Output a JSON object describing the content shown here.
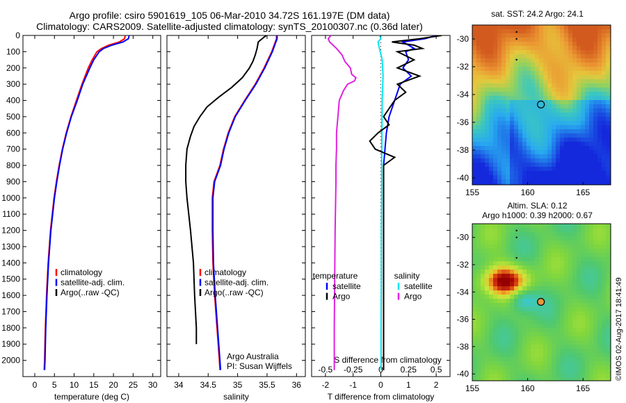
{
  "title": {
    "line1": "Argo profile: csiro 5901619_105 06-Mar-2010 34.72S 161.197E (DM data)",
    "line2": "Climatology: CARS2009. Satellite-adjusted climatology: synTS_20100307.nc (0.36d later)"
  },
  "side_caption": "©IMOS 02-Aug-2017 18:41:49",
  "colors": {
    "climatology": "#ff0000",
    "satellite": "#0000ff",
    "argo": "#000000",
    "salinity_satellite": "#00e5ee",
    "salinity_argo": "#e020e0"
  },
  "chart_data": [
    {
      "id": "temperature",
      "type": "line",
      "xlabel": "temperature (deg C)",
      "ylabel": "",
      "xlim": [
        -3,
        32
      ],
      "ylim": [
        2100,
        0
      ],
      "xticks": [
        "0",
        "5",
        "10",
        "15",
        "20",
        "25",
        "30"
      ],
      "xtick_values": [
        0,
        5,
        10,
        15,
        20,
        25,
        30
      ],
      "yticks": [
        "0",
        "100",
        "200",
        "300",
        "400",
        "500",
        "600",
        "700",
        "800",
        "900",
        "1000",
        "1100",
        "1200",
        "1300",
        "1400",
        "1500",
        "1600",
        "1700",
        "1800",
        "1900",
        "2000"
      ],
      "ytick_values": [
        0,
        100,
        200,
        300,
        400,
        500,
        600,
        700,
        800,
        900,
        1000,
        1100,
        1200,
        1300,
        1400,
        1500,
        1600,
        1700,
        1800,
        1900,
        2000
      ],
      "legend": {
        "entries": [
          {
            "label": "climatology",
            "color": "#ff0000"
          },
          {
            "label": "satellite-adj. clim.",
            "color": "#0000ff"
          },
          {
            "label": "Argo(..raw -QC)",
            "color": "#000000"
          }
        ]
      },
      "series": [
        {
          "color": "#ff0000",
          "depth": [
            0,
            20,
            40,
            60,
            80,
            100,
            150,
            200,
            300,
            400,
            500,
            600,
            700,
            800,
            900,
            1000,
            1200,
            1400,
            1600,
            1800,
            2000,
            2060
          ],
          "values": [
            23.0,
            22.8,
            21.5,
            18.8,
            17.0,
            15.8,
            14.6,
            13.6,
            12.0,
            10.6,
            9.2,
            8.0,
            7.0,
            6.2,
            5.5,
            4.9,
            4.0,
            3.4,
            3.0,
            2.7,
            2.5,
            2.4
          ]
        },
        {
          "color": "#0000ff",
          "depth": [
            0,
            20,
            40,
            60,
            80,
            100,
            150,
            200,
            300,
            400,
            500,
            600,
            700,
            800,
            900,
            1000,
            1200,
            1400,
            1600,
            1800,
            2000,
            2060
          ],
          "values": [
            24.0,
            23.8,
            22.4,
            19.6,
            17.5,
            16.4,
            15.0,
            14.0,
            12.2,
            10.8,
            9.3,
            8.1,
            7.1,
            6.3,
            5.6,
            5.0,
            4.1,
            3.5,
            3.1,
            2.8,
            2.6,
            2.5
          ]
        }
      ]
    },
    {
      "id": "salinity",
      "type": "line",
      "xlabel": "salinity",
      "ylabel": "",
      "xlim": [
        33.8,
        36.15
      ],
      "ylim": [
        2100,
        0
      ],
      "xticks": [
        "34",
        "34.5",
        "35",
        "35.5",
        "36"
      ],
      "xtick_values": [
        34,
        34.5,
        35,
        35.5,
        36
      ],
      "legend": {
        "entries": [
          {
            "label": "climatology",
            "color": "#ff0000"
          },
          {
            "label": "satellite-adj. clim.",
            "color": "#0000ff"
          },
          {
            "label": "Argo(..raw -QC)",
            "color": "#000000"
          }
        ]
      },
      "annotation": [
        "Argo Australia",
        "PI: Susan Wijffels"
      ],
      "series": [
        {
          "color": "#ff0000",
          "depth": [
            0,
            20,
            50,
            100,
            200,
            300,
            400,
            500,
            600,
            700,
            800,
            900,
            1000,
            1200,
            1400,
            1600,
            1800,
            2000,
            2060
          ],
          "values": [
            35.66,
            35.66,
            35.63,
            35.58,
            35.45,
            35.3,
            35.12,
            34.95,
            34.84,
            34.76,
            34.7,
            34.6,
            34.57,
            34.57,
            34.58,
            34.61,
            34.65,
            34.69,
            34.7
          ]
        },
        {
          "color": "#0000ff",
          "depth": [
            0,
            20,
            50,
            100,
            200,
            300,
            400,
            500,
            600,
            700,
            800,
            900,
            1000,
            1200,
            1400,
            1600,
            1800,
            2000,
            2060
          ],
          "values": [
            35.67,
            35.67,
            35.64,
            35.59,
            35.46,
            35.31,
            35.13,
            34.96,
            34.85,
            34.77,
            34.71,
            34.61,
            34.58,
            34.58,
            34.59,
            34.62,
            34.66,
            34.7,
            34.71
          ]
        },
        {
          "color": "#000000",
          "depth": [
            0,
            10,
            40,
            80,
            120,
            160,
            200,
            260,
            320,
            380,
            440,
            500,
            560,
            620,
            700,
            800,
            900,
            1000,
            1200,
            1400,
            1600,
            1800,
            1900
          ],
          "values": [
            35.49,
            35.45,
            35.35,
            35.33,
            35.3,
            35.26,
            35.2,
            35.08,
            34.9,
            34.68,
            34.48,
            34.36,
            34.26,
            34.2,
            34.14,
            34.12,
            34.12,
            34.14,
            34.2,
            34.25,
            34.27,
            34.3,
            34.3
          ]
        }
      ]
    },
    {
      "id": "difference",
      "type": "line",
      "xlabel": "T difference from climatology",
      "title_bottom": "S difference from climatology",
      "xlim": [
        -2.5,
        2.5
      ],
      "ylim": [
        2100,
        0
      ],
      "xticks_top": [
        "-0.5",
        "-0.25",
        "0",
        "0.25",
        "0.5"
      ],
      "xticks_top_values": [
        -2,
        -1,
        0,
        1,
        2
      ],
      "xticks": [
        "-2",
        "-1",
        "0",
        "1",
        "2"
      ],
      "xtick_values": [
        -2,
        -1,
        0,
        1,
        2
      ],
      "legend": {
        "headers": [
          "temperature",
          "salinity"
        ],
        "entries": [
          {
            "label": "satellite",
            "color": "#0000ff"
          },
          {
            "label": "Argo",
            "color": "#000000"
          },
          {
            "label": "satellite",
            "color": "#00e5ee"
          },
          {
            "label": "Argo",
            "color": "#e020e0"
          }
        ]
      },
      "series": [
        {
          "color": "#e020e0",
          "depth": [
            0,
            20,
            40,
            80,
            120,
            160,
            200,
            240,
            260,
            280,
            300,
            340,
            400,
            500,
            600,
            700,
            800,
            900,
            1000,
            1200,
            1400,
            1600,
            1800,
            2000,
            2060
          ],
          "values": [
            -1.8,
            -1.9,
            -1.85,
            -1.6,
            -1.4,
            -1.3,
            -1.1,
            -1.05,
            -0.9,
            -0.95,
            -1.2,
            -1.35,
            -1.5,
            -1.55,
            -1.6,
            -1.6,
            -1.62,
            -1.62,
            -1.63,
            -1.65,
            -1.66,
            -1.67,
            -1.68,
            -1.68,
            -1.68
          ]
        },
        {
          "color": "#00e5ee",
          "depth": [
            0,
            20,
            40,
            80,
            150,
            250,
            400,
            600,
            800,
            1000,
            1200,
            1500,
            1800,
            2060
          ],
          "values": [
            -0.05,
            0.0,
            -0.1,
            -0.05,
            0.05,
            0.08,
            0.05,
            0.04,
            0.03,
            0.03,
            0.02,
            0.02,
            0.01,
            0.01
          ]
        },
        {
          "color": "#0000ff",
          "depth": [
            0,
            20,
            40,
            60,
            80,
            100,
            150,
            200,
            250,
            300,
            350,
            400,
            500,
            600,
            700,
            800,
            1000,
            1200,
            1500,
            1800,
            2060
          ],
          "values": [
            2.0,
            1.6,
            0.8,
            1.0,
            1.2,
            0.9,
            1.0,
            0.8,
            1.1,
            0.7,
            0.6,
            0.5,
            0.3,
            0.2,
            0.15,
            0.1,
            0.1,
            0.1,
            0.1,
            0.1,
            0.1
          ]
        },
        {
          "color": "#000000",
          "depth": [
            0,
            20,
            40,
            60,
            80,
            100,
            150,
            200,
            250,
            300,
            350,
            400,
            450,
            500,
            550,
            600,
            650,
            700,
            750,
            800,
            1000,
            1200,
            1500,
            1800,
            2060
          ],
          "values": [
            2.2,
            1.4,
            0.4,
            1.2,
            1.5,
            0.6,
            1.2,
            0.6,
            1.4,
            0.6,
            0.9,
            0.5,
            0.3,
            0.1,
            0.3,
            -0.1,
            -0.4,
            -0.2,
            0.5,
            0.1,
            0.1,
            0.1,
            0.1,
            0.1,
            0.1
          ]
        }
      ]
    }
  ],
  "maps": [
    {
      "id": "sst-map",
      "title": [
        "sat. SST: 24.2 Argo: 24.1"
      ],
      "xticks": [
        "155",
        "160",
        "165"
      ],
      "xtick_values": [
        155,
        160,
        165
      ],
      "yticks": [
        "-30",
        "-32",
        "-34",
        "-36",
        "-38",
        "-40"
      ],
      "ytick_values": [
        -30,
        -32,
        -34,
        -36,
        -38,
        -40
      ],
      "lon_range": [
        155,
        167.5
      ],
      "lat_range": [
        -40.5,
        -29
      ],
      "marker": {
        "lon": 161.197,
        "lat": -34.72
      }
    },
    {
      "id": "sla-map",
      "title": [
        "Altim. SLA: 0.12",
        "Argo h1000: 0.39 h2000: 0.67"
      ],
      "xticks": [
        "155",
        "160",
        "165"
      ],
      "xtick_values": [
        155,
        160,
        165
      ],
      "yticks": [
        "-30",
        "-32",
        "-34",
        "-36",
        "-38",
        "-40"
      ],
      "ytick_values": [
        -30,
        -32,
        -34,
        -36,
        -38,
        -40
      ],
      "lon_range": [
        155,
        167.5
      ],
      "lat_range": [
        -40.5,
        -29
      ],
      "marker": {
        "lon": 161.197,
        "lat": -34.72
      }
    }
  ]
}
